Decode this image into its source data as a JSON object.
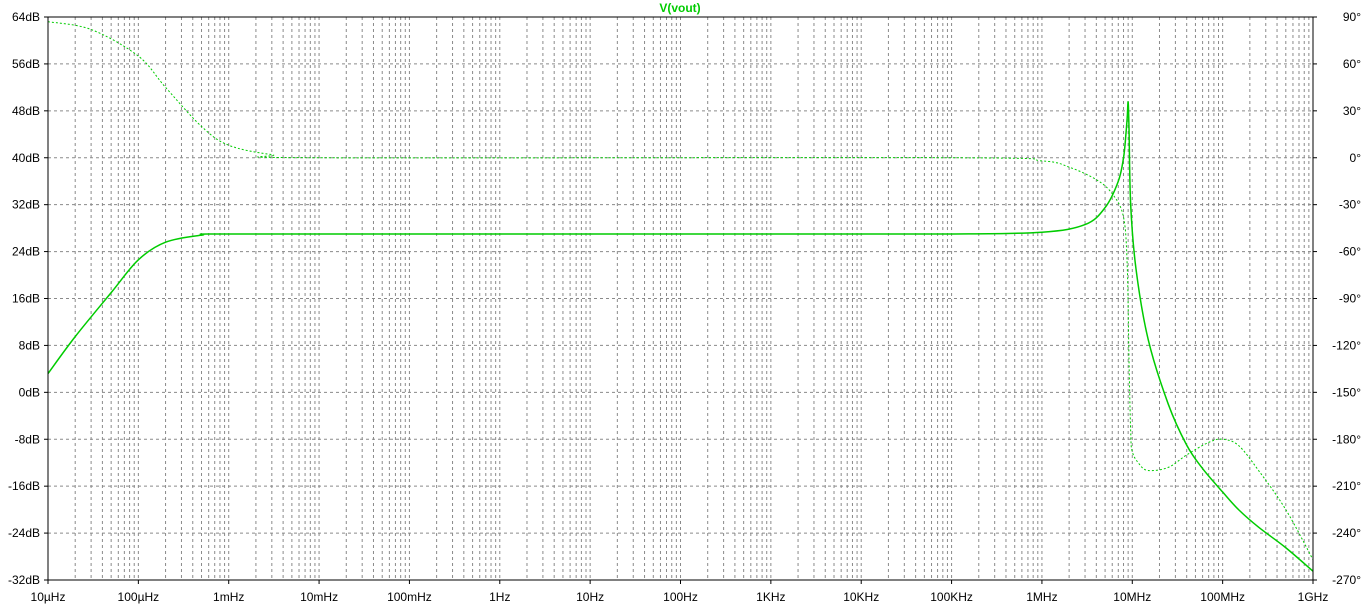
{
  "window": {
    "background": "#ffffff"
  },
  "chart_data": {
    "type": "line",
    "title": "V(vout)",
    "colors": {
      "trace": "#00cc00",
      "grid": "#8a8a8a",
      "frame": "#000000",
      "text": "#000000",
      "title": "#00cc00"
    },
    "grid": true,
    "x_axis": {
      "scale": "log",
      "range_hz": [
        1e-05,
        1000000000
      ],
      "tick_labels": [
        "10µHz",
        "100µHz",
        "1mHz",
        "10mHz",
        "100mHz",
        "1Hz",
        "10Hz",
        "100Hz",
        "1KHz",
        "10KHz",
        "100KHz",
        "1MHz",
        "10MHz",
        "100MHz",
        "1GHz"
      ]
    },
    "y_axis_left": {
      "unit": "dB",
      "range": [
        -32,
        64
      ],
      "tick_labels": [
        "64dB",
        "56dB",
        "48dB",
        "40dB",
        "32dB",
        "24dB",
        "16dB",
        "8dB",
        "0dB",
        "-8dB",
        "-16dB",
        "-24dB",
        "-32dB"
      ]
    },
    "y_axis_right": {
      "unit": "degrees",
      "range": [
        -270,
        90
      ],
      "tick_labels": [
        "90°",
        "60°",
        "30°",
        "0°",
        "-30°",
        "-60°",
        "-90°",
        "-120°",
        "-150°",
        "-180°",
        "-210°",
        "-240°",
        "-270°"
      ]
    },
    "series": [
      {
        "name": "V(vout)",
        "quantity": "magnitude",
        "style": "solid",
        "points": [
          [
            1e-05,
            3.2
          ],
          [
            2e-05,
            9.5
          ],
          [
            5e-05,
            17
          ],
          [
            0.0001,
            22.6
          ],
          [
            0.0002,
            25.6
          ],
          [
            0.0005,
            26.8
          ],
          [
            0.001,
            27
          ],
          [
            1,
            27
          ],
          [
            1000,
            27
          ],
          [
            100000,
            27
          ],
          [
            1000000,
            27.3
          ],
          [
            3000000,
            28.6
          ],
          [
            5000000,
            31.5
          ],
          [
            7000000,
            36
          ],
          [
            8000000,
            40
          ],
          [
            8500000,
            44
          ],
          [
            8800000,
            47
          ],
          [
            9000000,
            49.5
          ],
          [
            9200000,
            45
          ],
          [
            9600000,
            32
          ],
          [
            11000000,
            21
          ],
          [
            15000000,
            9
          ],
          [
            25000000,
            -2
          ],
          [
            40000000,
            -9
          ],
          [
            60000000,
            -13
          ],
          [
            100000000,
            -17
          ],
          [
            150000000,
            -20
          ],
          [
            250000000,
            -23
          ],
          [
            500000000,
            -26.5
          ],
          [
            1000000000,
            -30.5
          ]
        ]
      },
      {
        "name": "V(vout)",
        "quantity": "phase",
        "style": "dashed",
        "points": [
          [
            1e-05,
            87
          ],
          [
            3e-05,
            82
          ],
          [
            0.0001,
            65
          ],
          [
            0.0002,
            45
          ],
          [
            0.0005,
            20
          ],
          [
            0.001,
            8
          ],
          [
            0.003,
            2
          ],
          [
            0.01,
            0
          ],
          [
            100000,
            0
          ],
          [
            1000000,
            -2
          ],
          [
            2000000,
            -6
          ],
          [
            4000000,
            -14
          ],
          [
            6000000,
            -23
          ],
          [
            8000000,
            -38
          ],
          [
            8800000,
            -70
          ],
          [
            9200000,
            -130
          ],
          [
            9600000,
            -175
          ],
          [
            10000000,
            -188
          ],
          [
            12000000,
            -196
          ],
          [
            15000000,
            -200
          ],
          [
            25000000,
            -198
          ],
          [
            40000000,
            -190
          ],
          [
            70000000,
            -182
          ],
          [
            100000000,
            -180
          ],
          [
            150000000,
            -184
          ],
          [
            250000000,
            -200
          ],
          [
            500000000,
            -225
          ],
          [
            1000000000,
            -257
          ]
        ]
      }
    ]
  }
}
